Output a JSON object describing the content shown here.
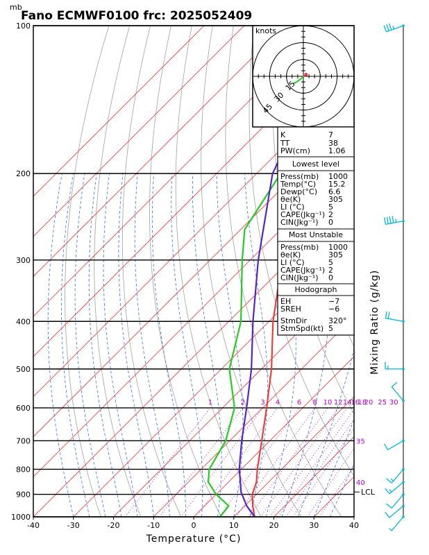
{
  "header": {
    "units_label": "mb",
    "title": "Fano ECMWF0100 frc: 2025052409"
  },
  "chart_data": {
    "type": "skew-t",
    "xlabel": "Temperature (°C)",
    "ylabel": "Mixing Ratio (g/kg)",
    "xlim": [
      -40,
      40
    ],
    "ylim": [
      1000,
      100
    ],
    "x_ticks": [
      -40,
      -30,
      -20,
      -10,
      0,
      10,
      20,
      30,
      40
    ],
    "pressure_levels": [
      100,
      200,
      300,
      400,
      500,
      600,
      700,
      800,
      900,
      1000
    ],
    "mixing_ratio_labels": [
      "1",
      "2",
      "3",
      "4",
      "6",
      "8",
      "10",
      "12",
      "14",
      "16",
      "18",
      "20",
      "25",
      "30"
    ],
    "dry_adiabat_labels": [
      "35",
      "40"
    ],
    "lcl_label": "LCL",
    "lcl_pressure": 890,
    "series": [
      {
        "name": "",
        "color": "#e8403a",
        "points": [
          [
            1000,
            15.2
          ],
          [
            950,
            12.0
          ],
          [
            900,
            9.0
          ],
          [
            850,
            7.0
          ],
          [
            800,
            4.0
          ],
          [
            700,
            -2.0
          ],
          [
            600,
            -9.0
          ],
          [
            500,
            -17.5
          ],
          [
            400,
            -29.0
          ],
          [
            300,
            -42.0
          ],
          [
            250,
            -51.0
          ],
          [
            200,
            -50.0
          ],
          [
            150,
            -49.0
          ],
          [
            100,
            -50.0
          ]
        ]
      },
      {
        "name": "",
        "color": "#22cc22",
        "points": [
          [
            1000,
            6.6
          ],
          [
            950,
            6.0
          ],
          [
            900,
            0.0
          ],
          [
            850,
            -5.0
          ],
          [
            800,
            -8.0
          ],
          [
            700,
            -11.0
          ],
          [
            600,
            -17.0
          ],
          [
            500,
            -28.0
          ],
          [
            400,
            -37.0
          ],
          [
            300,
            -52.0
          ],
          [
            260,
            -59.0
          ],
          [
            200,
            -64.0
          ],
          [
            150,
            -70.0
          ],
          [
            100,
            -76.0
          ]
        ]
      },
      {
        "name": "",
        "color": "#5522cc",
        "points": [
          [
            1000,
            15.2
          ],
          [
            950,
            10.5
          ],
          [
            890,
            5.6
          ],
          [
            850,
            3.0
          ],
          [
            800,
            -0.5
          ],
          [
            700,
            -7.0
          ],
          [
            600,
            -14.0
          ],
          [
            500,
            -22.5
          ],
          [
            400,
            -34.0
          ],
          [
            300,
            -48.0
          ],
          [
            200,
            -66.0
          ],
          [
            150,
            -74.0
          ]
        ]
      }
    ],
    "hodograph": {
      "units_label": "knots",
      "ring_labels": [
        "15",
        "30",
        "45"
      ],
      "points": [
        [
          0,
          0
        ],
        [
          -1.5,
          -1.5
        ],
        [
          -3.5,
          -3.0
        ],
        [
          -5.5,
          -4.0
        ]
      ],
      "arrow": [
        [
          0,
          0
        ],
        [
          1.5,
          1.0
        ]
      ]
    },
    "wind_barbs": [
      {
        "p": 100,
        "speed": 35,
        "dir": 250
      },
      {
        "p": 250,
        "speed": 45,
        "dir": 260
      },
      {
        "p": 400,
        "speed": 20,
        "dir": 280
      },
      {
        "p": 500,
        "speed": 15,
        "dir": 270
      },
      {
        "p": 580,
        "speed": 10,
        "dir": 320
      },
      {
        "p": 700,
        "speed": 10,
        "dir": 240
      },
      {
        "p": 800,
        "speed": 15,
        "dir": 220
      },
      {
        "p": 850,
        "speed": 15,
        "dir": 230
      },
      {
        "p": 900,
        "speed": 10,
        "dir": 220
      },
      {
        "p": 950,
        "speed": 10,
        "dir": 230
      },
      {
        "p": 1000,
        "speed": 5,
        "dir": 220
      }
    ]
  },
  "indices": {
    "k_label": "K",
    "k_value": "7",
    "tt_label": "TT",
    "tt_value": "38",
    "pw_label": "PW(cm)",
    "pw_value": "1.06"
  },
  "lowest_level": {
    "header": "Lowest level",
    "rows": [
      {
        "label": "Press(mb)",
        "value": "1000"
      },
      {
        "label": "Temp(°C)",
        "value": "15.2"
      },
      {
        "label": "Dewp(°C)",
        "value": "6.6"
      },
      {
        "label": "θe(K)",
        "value": "305"
      },
      {
        "label": "LI (°C)",
        "value": "5"
      },
      {
        "label": "CAPE(Jkg⁻¹)",
        "value": "2"
      },
      {
        "label": "CIN(Jkg⁻¹)",
        "value": "0"
      }
    ]
  },
  "most_unstable": {
    "header": "Most Unstable",
    "rows": [
      {
        "label": "Press(mb)",
        "value": "1000"
      },
      {
        "label": "θe(K)",
        "value": "305"
      },
      {
        "label": "LI (°C)",
        "value": "5"
      },
      {
        "label": "CAPE(Jkg⁻¹)",
        "value": "2"
      },
      {
        "label": "CIN(Jkg⁻¹)",
        "value": "0"
      }
    ]
  },
  "hodograph_table": {
    "header": "Hodograph",
    "rows": [
      {
        "label": "EH",
        "value": "−7"
      },
      {
        "label": "SREH",
        "value": "−6"
      },
      {
        "label": "StmDir",
        "value": "320°"
      },
      {
        "label": "StmSpd(kt)",
        "value": "5"
      }
    ]
  },
  "colors": {
    "temperature": "#e8403a",
    "dewpoint": "#22cc22",
    "parcel": "#5522cc",
    "isotherm": "#ff3030",
    "dry_adiabat": "#a0a0a0",
    "moist_adiabat": "#3a6ee8",
    "mixing_ratio": "#b000d0",
    "wind_barb": "#00b8d8"
  }
}
